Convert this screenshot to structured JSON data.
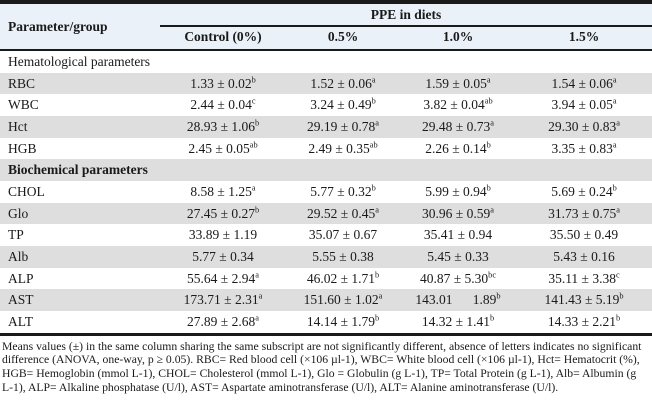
{
  "colors": {
    "ink": "#1a1a1a",
    "header_bg": "#eaf1f8",
    "row_shade": "#dedede"
  },
  "table": {
    "param_header": "Parameter/group",
    "group_header": "PPE in diets",
    "columns": [
      "Control (0%)",
      "0.5%",
      "1.0%",
      "1.5%"
    ],
    "rows": [
      {
        "type": "section",
        "label": "Hematological parameters",
        "bold": false
      },
      {
        "type": "data",
        "param": "RBC",
        "cells": [
          {
            "text": "1.33 ± 0.02",
            "sup": "b"
          },
          {
            "text": "1.52 ± 0.06",
            "sup": "a"
          },
          {
            "text": "1.59 ± 0.05",
            "sup": "a"
          },
          {
            "text": "1.54 ± 0.06",
            "sup": "a"
          }
        ]
      },
      {
        "type": "data",
        "param": "WBC",
        "cells": [
          {
            "text": "2.44 ± 0.04",
            "sup": "c"
          },
          {
            "text": "3.24 ± 0.49",
            "sup": "b"
          },
          {
            "text": "3.82 ± 0.04",
            "sup": "ab"
          },
          {
            "text": "3.94 ± 0.05",
            "sup": "a"
          }
        ]
      },
      {
        "type": "data",
        "param": "Hct",
        "cells": [
          {
            "text": "28.93 ± 1.06",
            "sup": "b"
          },
          {
            "text": "29.19 ± 0.78",
            "sup": "a"
          },
          {
            "text": "29.48 ± 0.73",
            "sup": "a"
          },
          {
            "text": "29.30 ± 0.83",
            "sup": "a"
          }
        ]
      },
      {
        "type": "data",
        "param": "HGB",
        "cells": [
          {
            "text": "2.45 ± 0.05",
            "sup": "ab"
          },
          {
            "text": "2.49 ± 0.35",
            "sup": "ab"
          },
          {
            "text": "2.26 ± 0.14",
            "sup": "b"
          },
          {
            "text": "3.35 ± 0.83",
            "sup": "a"
          }
        ]
      },
      {
        "type": "section",
        "label": "Biochemical parameters",
        "bold": true
      },
      {
        "type": "data",
        "param": "CHOL",
        "cells": [
          {
            "text": "8.58 ± 1.25",
            "sup": "a"
          },
          {
            "text": "5.77 ± 0.32",
            "sup": "b"
          },
          {
            "text": "5.99 ± 0.94",
            "sup": "b"
          },
          {
            "text": "5.69 ± 0.24",
            "sup": "b"
          }
        ]
      },
      {
        "type": "data",
        "param": "Glo",
        "cells": [
          {
            "text": "27.45 ± 0.27",
            "sup": "b"
          },
          {
            "text": "29.52 ± 0.45",
            "sup": "a"
          },
          {
            "text": "30.96 ± 0.59",
            "sup": "a"
          },
          {
            "text": "31.73 ± 0.75",
            "sup": "a"
          }
        ]
      },
      {
        "type": "data",
        "param": "TP",
        "cells": [
          {
            "text": "33.89 ± 1.19",
            "sup": ""
          },
          {
            "text": "35.07 ± 0.67",
            "sup": ""
          },
          {
            "text": "35.41 ± 0.94",
            "sup": ""
          },
          {
            "text": "35.50 ± 0.49",
            "sup": ""
          }
        ]
      },
      {
        "type": "data",
        "param": "Alb",
        "cells": [
          {
            "text": "5.77 ± 0.34",
            "sup": ""
          },
          {
            "text": "5.55 ± 0.38",
            "sup": ""
          },
          {
            "text": "5.45 ± 0.33",
            "sup": ""
          },
          {
            "text": "5.43 ± 0.16",
            "sup": ""
          }
        ]
      },
      {
        "type": "data",
        "param": "ALP",
        "cells": [
          {
            "text": "55.64 ± 2.94",
            "sup": "a"
          },
          {
            "text": "46.02 ± 1.71",
            "sup": "b"
          },
          {
            "text": "40.87 ± 5.30",
            "sup": "bc"
          },
          {
            "text": "35.11 ± 3.38",
            "sup": "c"
          }
        ]
      },
      {
        "type": "data",
        "param": "AST",
        "cells": [
          {
            "text": "173.71 ± 2.31",
            "sup": "a"
          },
          {
            "text": "151.60 ± 1.02",
            "sup": "a"
          },
          {
            "text": "143.01      1.89",
            "sup": "b"
          },
          {
            "text": "141.43 ± 5.19",
            "sup": "b"
          }
        ]
      },
      {
        "type": "data",
        "param": "ALT",
        "cells": [
          {
            "text": "27.89 ± 2.68",
            "sup": "a"
          },
          {
            "text": "14.14 ± 1.79",
            "sup": "b"
          },
          {
            "text": "14.32 ± 1.41",
            "sup": "b"
          },
          {
            "text": "14.33 ± 2.21",
            "sup": "b"
          }
        ]
      }
    ]
  },
  "footnote": "Means values (±) in the same column sharing the same subscript are not significantly different, absence of letters indicates no significant difference (ANOVA, one-way, p ≥ 0.05). RBC= Red blood cell (×106 µl-1), WBC= White blood cell (×106 µl-1), Hct= Hematocrit (%), HGB= Hemoglobin (mmol L-1), CHOL= Cholesterol (mmol L-1), Glo = Globulin (g L-1), TP= Total Protein (g L-1), Alb= Albumin (g L-1), ALP= Alkaline phosphatase (U/l), AST= Aspartate aminotransferase (U/l), ALT= Alanine aminotransferase (U/l)."
}
